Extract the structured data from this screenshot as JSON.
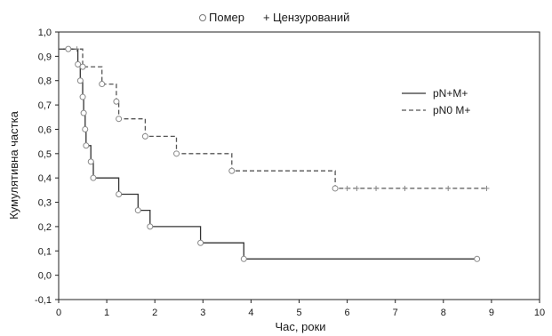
{
  "chart_data": {
    "type": "line",
    "chart_kind": "kaplan-meier survival curves",
    "xlabel": "Час, роки",
    "ylabel": "Кумулятивна частка",
    "xlim": [
      0,
      10
    ],
    "ylim": [
      -0.1,
      1.0
    ],
    "x_ticks": [
      "0",
      "1",
      "2",
      "3",
      "4",
      "5",
      "6",
      "7",
      "8",
      "9",
      "10"
    ],
    "y_ticks": [
      "-0,1",
      "0,0",
      "0,1",
      "0,2",
      "0,3",
      "0,4",
      "0,5",
      "0,6",
      "0,7",
      "0,8",
      "0,9",
      "1,0"
    ],
    "grid": false,
    "top_legend": {
      "placement": "top-center",
      "items": [
        {
          "marker": "○",
          "label": "Помер"
        },
        {
          "marker": "+",
          "label": "Цензурований"
        }
      ]
    },
    "inner_legend_placement": "top-right",
    "series": [
      {
        "name": "pN+M+",
        "line_style": "solid",
        "color": "#333333",
        "steps": [
          [
            0,
            0.93
          ],
          [
            0.4,
            0.867
          ],
          [
            0.45,
            0.8
          ],
          [
            0.5,
            0.733
          ],
          [
            0.52,
            0.667
          ],
          [
            0.55,
            0.6
          ],
          [
            0.57,
            0.533
          ],
          [
            0.67,
            0.467
          ],
          [
            0.72,
            0.4
          ],
          [
            1.25,
            0.333
          ],
          [
            1.65,
            0.267
          ],
          [
            1.9,
            0.2
          ],
          [
            2.95,
            0.133
          ],
          [
            3.85,
            0.067
          ],
          [
            8.7,
            0.067
          ]
        ],
        "deaths": [
          [
            0.4,
            0.867
          ],
          [
            0.45,
            0.8
          ],
          [
            0.5,
            0.733
          ],
          [
            0.52,
            0.667
          ],
          [
            0.55,
            0.6
          ],
          [
            0.57,
            0.533
          ],
          [
            0.67,
            0.467
          ],
          [
            0.72,
            0.4
          ],
          [
            1.25,
            0.333
          ],
          [
            1.65,
            0.267
          ],
          [
            1.9,
            0.2
          ],
          [
            2.95,
            0.133
          ],
          [
            3.85,
            0.067
          ],
          [
            8.7,
            0.067
          ]
        ],
        "censored": []
      },
      {
        "name": "pN0 M+",
        "line_style": "dashed",
        "color": "#555555",
        "steps": [
          [
            0,
            0.93
          ],
          [
            0.5,
            0.857
          ],
          [
            0.9,
            0.786
          ],
          [
            1.2,
            0.714
          ],
          [
            1.25,
            0.643
          ],
          [
            1.8,
            0.571
          ],
          [
            2.45,
            0.5
          ],
          [
            3.6,
            0.429
          ],
          [
            5.75,
            0.357
          ],
          [
            8.9,
            0.357
          ]
        ],
        "deaths": [
          [
            0.2,
            0.93
          ],
          [
            0.5,
            0.857
          ],
          [
            0.9,
            0.786
          ],
          [
            1.2,
            0.714
          ],
          [
            1.25,
            0.643
          ],
          [
            1.8,
            0.571
          ],
          [
            2.45,
            0.5
          ],
          [
            3.6,
            0.429
          ],
          [
            5.75,
            0.357
          ]
        ],
        "censored": [
          [
            0.38,
            0.93
          ],
          [
            6.0,
            0.357
          ],
          [
            6.2,
            0.357
          ],
          [
            6.6,
            0.357
          ],
          [
            7.2,
            0.357
          ],
          [
            8.1,
            0.357
          ],
          [
            8.9,
            0.357
          ]
        ]
      }
    ]
  }
}
